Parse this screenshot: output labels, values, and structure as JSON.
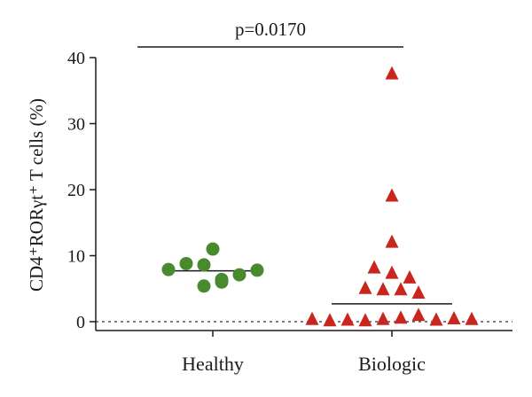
{
  "chart_data": {
    "type": "scatter",
    "ylabel": "CD4⁺RORγt⁺ T cells (%)",
    "ylim": [
      0,
      40
    ],
    "yticks": [
      0,
      10,
      20,
      30,
      40
    ],
    "categories": [
      "Healthy",
      "Biologic"
    ],
    "annotation": "p=0.0170",
    "reference_line": {
      "y": 0,
      "style": "dotted"
    },
    "series": [
      {
        "category": "Healthy",
        "marker": "circle",
        "color": "#4a8a2f",
        "median": 7.7,
        "values": [
          7.9,
          8.8,
          8.6,
          6.4,
          5.4,
          6.0,
          7.1,
          7.8,
          11.0
        ]
      },
      {
        "category": "Biologic",
        "marker": "triangle",
        "color": "#c8261e",
        "median": 2.7,
        "values": [
          37.5,
          19.0,
          12.0,
          8.1,
          7.3,
          6.6,
          5.0,
          4.8,
          4.8,
          4.3,
          0.3,
          0.1,
          0.2,
          0.1,
          0.3,
          0.5,
          0.9,
          0.2,
          0.4,
          0.3
        ]
      }
    ]
  }
}
